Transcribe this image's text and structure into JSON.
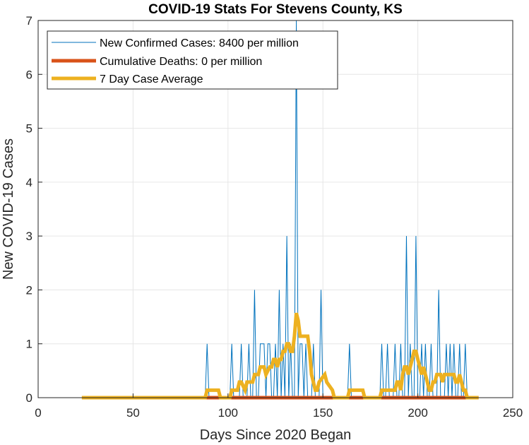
{
  "chart_data": {
    "type": "line",
    "title": "COVID-19 Stats For Stevens County, KS",
    "xlabel": "Days Since 2020 Began",
    "ylabel": "New COVID-19 Cases",
    "xlim": [
      0,
      250
    ],
    "ylim": [
      0,
      7
    ],
    "xticks": [
      "0",
      "50",
      "100",
      "150",
      "200",
      "250"
    ],
    "yticks": [
      "0",
      "1",
      "2",
      "3",
      "4",
      "5",
      "6",
      "7"
    ],
    "grid": true,
    "legend_position": "top-left",
    "series": [
      {
        "name": "New Confirmed Cases: 8400 per million",
        "color": "#0072BD",
        "style": "thin-line",
        "x": [
          23,
          88,
          89,
          90,
          101,
          102,
          103,
          106,
          107,
          108,
          110,
          111,
          112,
          113,
          114,
          115,
          116,
          117,
          118,
          119,
          120,
          121,
          122,
          123,
          124,
          125,
          126,
          127,
          128,
          129,
          130,
          131,
          132,
          133,
          134,
          135,
          136,
          137,
          138,
          139,
          140,
          141,
          142,
          143,
          144,
          145,
          146,
          147,
          148,
          149,
          150,
          151,
          152,
          163,
          164,
          165,
          180,
          181,
          182,
          183,
          184,
          185,
          186,
          187,
          188,
          189,
          190,
          191,
          192,
          193,
          194,
          195,
          196,
          197,
          198,
          199,
          200,
          201,
          202,
          203,
          204,
          205,
          206,
          207,
          208,
          209,
          210,
          211,
          212,
          213,
          214,
          215,
          216,
          217,
          218,
          219,
          220,
          221,
          222,
          223,
          224,
          225,
          226,
          227,
          228,
          232
        ],
        "y": [
          0,
          0,
          1,
          0,
          0,
          1,
          0,
          0,
          1,
          0,
          0,
          1,
          0,
          0,
          2,
          0,
          0,
          1,
          1,
          1,
          0,
          1,
          1,
          0,
          0,
          1,
          0,
          2,
          0,
          1,
          0,
          3,
          0,
          1,
          0,
          0,
          7,
          0,
          1,
          1,
          0,
          1,
          0,
          0,
          0,
          1,
          0,
          0,
          0,
          2,
          0,
          0,
          0,
          0,
          1,
          0,
          0,
          1,
          0,
          0,
          1,
          0,
          0,
          0,
          1,
          0,
          0,
          1,
          0,
          0,
          3,
          0,
          1,
          0,
          0,
          3,
          0,
          0,
          1,
          0,
          1,
          0,
          0,
          1,
          0,
          0,
          0,
          2,
          0,
          0,
          0,
          1,
          0,
          1,
          0,
          1,
          0,
          0,
          1,
          0,
          0,
          1,
          0,
          0,
          0,
          0
        ]
      },
      {
        "name": "Cumulative Deaths: 0 per million",
        "color": "#D95319",
        "style": "thick-line",
        "x": [
          88,
          232
        ],
        "y": [
          0,
          0
        ]
      },
      {
        "name": "7 Day Case Average",
        "color": "#EDB120",
        "style": "thick-line",
        "x": [
          23,
          88,
          89,
          95,
          96,
          101,
          102,
          105,
          106,
          107,
          109,
          110,
          113,
          114,
          116,
          117,
          119,
          120,
          122,
          123,
          124,
          125,
          126,
          127,
          128,
          129,
          130,
          131,
          132,
          133,
          134,
          135,
          136,
          137,
          138,
          142,
          143,
          144,
          146,
          147,
          148,
          151,
          152,
          155,
          156,
          158,
          163,
          164,
          171,
          172,
          180,
          181,
          188,
          189,
          190,
          191,
          192,
          193,
          194,
          195,
          196,
          197,
          198,
          199,
          200,
          201,
          202,
          203,
          204,
          205,
          206,
          207,
          208,
          209,
          210,
          211,
          212,
          213,
          214,
          215,
          216,
          217,
          218,
          219,
          220,
          221,
          222,
          223,
          224,
          225,
          226,
          227,
          232
        ],
        "y": [
          0,
          0,
          0.14,
          0.14,
          0,
          0,
          0.14,
          0.14,
          0.29,
          0.29,
          0.14,
          0.29,
          0.29,
          0.43,
          0.43,
          0.57,
          0.57,
          0.43,
          0.57,
          0.57,
          0.71,
          0.71,
          0.57,
          0.71,
          0.71,
          0.86,
          0.86,
          1.0,
          1.0,
          0.86,
          0.86,
          1.14,
          1.57,
          1.43,
          1.14,
          1.14,
          0.86,
          0.43,
          0.14,
          0.14,
          0.29,
          0.43,
          0.29,
          0.14,
          0,
          0,
          0,
          0.14,
          0.14,
          0,
          0,
          0.14,
          0.14,
          0.29,
          0.29,
          0.14,
          0.43,
          0.57,
          0.57,
          0.43,
          0.57,
          0.71,
          0.86,
          0.86,
          0.71,
          0.57,
          0.43,
          0.57,
          0.43,
          0.29,
          0.14,
          0.14,
          0.29,
          0.29,
          0.43,
          0.43,
          0.43,
          0.29,
          0.43,
          0.43,
          0.43,
          0.43,
          0.43,
          0.43,
          0.29,
          0.29,
          0.43,
          0.29,
          0.14,
          0.14,
          0,
          0,
          0
        ]
      }
    ]
  }
}
